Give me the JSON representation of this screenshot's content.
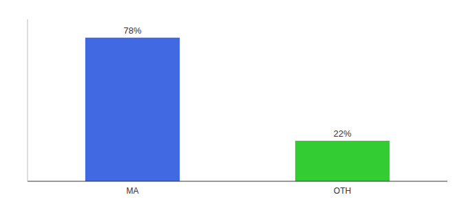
{
  "chart_data": {
    "type": "bar",
    "categories": [
      "MA",
      "OTH"
    ],
    "values": [
      78,
      22
    ],
    "value_labels": [
      "78%",
      "22%"
    ],
    "colors": [
      "#4169e1",
      "#33cc33"
    ],
    "ylim": [
      0,
      88
    ],
    "data_labels": true,
    "tick_labels": "x",
    "grid": false
  }
}
